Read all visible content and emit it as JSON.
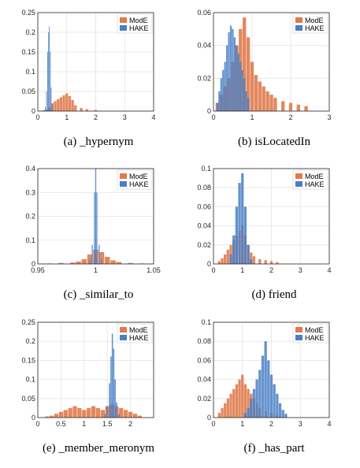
{
  "colors": {
    "ModE": "#e07b4c",
    "HAKE": "#4a7fc6"
  },
  "legend_placement": "top-right",
  "chart_data": [
    {
      "type": "bar",
      "caption": "(a) _hypernym",
      "xlim": [
        0,
        4
      ],
      "ylim": [
        0,
        0.25
      ],
      "xticks": [
        "0",
        "1",
        "2",
        "3",
        "4"
      ],
      "yticks": [
        "0",
        "0.05",
        "0.1",
        "0.15",
        "0.2",
        "0.25"
      ],
      "grid": true,
      "legend": [
        "ModE",
        "HAKE"
      ],
      "series": [
        {
          "name": "ModE",
          "x": [
            0.2,
            0.3,
            0.4,
            0.5,
            0.6,
            0.7,
            0.8,
            0.9,
            1.0,
            1.1,
            1.2,
            1.3,
            1.5,
            1.7,
            2.0
          ],
          "y": [
            0.002,
            0.004,
            0.01,
            0.02,
            0.025,
            0.03,
            0.035,
            0.04,
            0.045,
            0.038,
            0.028,
            0.015,
            0.008,
            0.005,
            0.003
          ]
        },
        {
          "name": "HAKE",
          "x": [
            0.26,
            0.3,
            0.34,
            0.37,
            0.4,
            0.43,
            0.46,
            0.5
          ],
          "y": [
            0.01,
            0.05,
            0.15,
            0.2,
            0.215,
            0.15,
            0.06,
            0.015
          ]
        }
      ]
    },
    {
      "type": "bar",
      "caption": "(b) isLocatedIn",
      "xlim": [
        0,
        3
      ],
      "ylim": [
        0,
        0.06
      ],
      "xticks": [
        "0",
        "1",
        "2",
        "3"
      ],
      "yticks": [
        "0",
        "0.02",
        "0.04",
        "0.06"
      ],
      "grid": true,
      "legend": [
        "ModE",
        "HAKE"
      ],
      "series": [
        {
          "name": "ModE",
          "x": [
            0.1,
            0.2,
            0.3,
            0.4,
            0.5,
            0.6,
            0.7,
            0.8,
            0.9,
            1.0,
            1.1,
            1.2,
            1.3,
            1.4,
            1.5,
            1.6,
            1.8,
            2.0,
            2.2,
            2.4
          ],
          "y": [
            0.005,
            0.01,
            0.015,
            0.02,
            0.03,
            0.04,
            0.05,
            0.057,
            0.045,
            0.03,
            0.022,
            0.018,
            0.015,
            0.012,
            0.01,
            0.008,
            0.006,
            0.005,
            0.004,
            0.003
          ]
        },
        {
          "name": "HAKE",
          "x": [
            0.1,
            0.15,
            0.2,
            0.25,
            0.3,
            0.35,
            0.4,
            0.45,
            0.5,
            0.55,
            0.6,
            0.65,
            0.7,
            0.75,
            0.8,
            0.85,
            0.9
          ],
          "y": [
            0.005,
            0.012,
            0.02,
            0.025,
            0.03,
            0.04,
            0.048,
            0.052,
            0.05,
            0.045,
            0.04,
            0.035,
            0.03,
            0.025,
            0.02,
            0.012,
            0.008
          ]
        }
      ]
    },
    {
      "type": "bar",
      "caption": "(c) _similar_to",
      "xlim": [
        0.95,
        1.05
      ],
      "ylim": [
        0,
        0.4
      ],
      "xticks": [
        "0.95",
        "1",
        "1.05"
      ],
      "yticks": [
        "0",
        "0.1",
        "0.2",
        "0.3",
        "0.4"
      ],
      "grid": true,
      "legend": [
        "ModE",
        "HAKE"
      ],
      "series": [
        {
          "name": "ModE",
          "x": [
            0.96,
            0.97,
            0.98,
            0.985,
            0.99,
            0.995,
            1.0,
            1.005,
            1.01,
            1.015,
            1.02,
            1.03,
            1.04
          ],
          "y": [
            0.002,
            0.004,
            0.006,
            0.01,
            0.02,
            0.04,
            0.06,
            0.05,
            0.03,
            0.015,
            0.008,
            0.004,
            0.002
          ]
        },
        {
          "name": "HAKE",
          "x": [
            0.995,
            0.997,
            0.999,
            1.0,
            1.001,
            1.003,
            1.005
          ],
          "y": [
            0.02,
            0.08,
            0.3,
            0.4,
            0.3,
            0.08,
            0.02
          ]
        }
      ]
    },
    {
      "type": "bar",
      "caption": "(d) friend",
      "xlim": [
        0,
        4
      ],
      "ylim": [
        0,
        0.1
      ],
      "xticks": [
        "0",
        "1",
        "2",
        "3",
        "4"
      ],
      "yticks": [
        "0",
        "0.02",
        "0.04",
        "0.06",
        "0.08",
        "0.1"
      ],
      "grid": true,
      "legend": [
        "ModE",
        "HAKE"
      ],
      "series": [
        {
          "name": "ModE",
          "x": [
            0.2,
            0.3,
            0.4,
            0.5,
            0.6,
            0.7,
            0.8,
            0.9,
            1.0,
            1.1,
            1.2,
            1.3,
            1.4,
            1.6,
            1.8,
            2.0,
            2.2
          ],
          "y": [
            0.003,
            0.006,
            0.01,
            0.015,
            0.02,
            0.025,
            0.03,
            0.035,
            0.04,
            0.03,
            0.02,
            0.012,
            0.008,
            0.005,
            0.004,
            0.003,
            0.002
          ]
        },
        {
          "name": "HAKE",
          "x": [
            0.6,
            0.7,
            0.8,
            0.9,
            1.0,
            1.1,
            1.2,
            1.3
          ],
          "y": [
            0.01,
            0.03,
            0.06,
            0.085,
            0.095,
            0.06,
            0.02,
            0.005
          ]
        }
      ]
    },
    {
      "type": "bar",
      "caption": "(e) _member_meronym",
      "xlim": [
        0,
        2.5
      ],
      "ylim": [
        0,
        0.25
      ],
      "xticks": [
        "0",
        "0.5",
        "1",
        "1.5",
        "2"
      ],
      "yticks": [
        "0",
        "0.05",
        "0.1",
        "0.15",
        "0.2",
        "0.25"
      ],
      "grid": true,
      "legend": [
        "ModE",
        "HAKE"
      ],
      "series": [
        {
          "name": "ModE",
          "x": [
            0.2,
            0.3,
            0.4,
            0.5,
            0.6,
            0.7,
            0.8,
            0.9,
            1.0,
            1.1,
            1.2,
            1.3,
            1.4,
            1.5,
            1.6,
            1.7,
            1.8,
            1.9,
            2.0,
            2.1,
            2.2
          ],
          "y": [
            0.003,
            0.005,
            0.01,
            0.015,
            0.02,
            0.025,
            0.03,
            0.025,
            0.02,
            0.025,
            0.03,
            0.025,
            0.02,
            0.03,
            0.035,
            0.03,
            0.025,
            0.02,
            0.015,
            0.01,
            0.005
          ]
        },
        {
          "name": "HAKE",
          "x": [
            1.45,
            1.5,
            1.55,
            1.58,
            1.61,
            1.64,
            1.67,
            1.7,
            1.75
          ],
          "y": [
            0.01,
            0.03,
            0.09,
            0.16,
            0.22,
            0.18,
            0.1,
            0.04,
            0.01
          ]
        }
      ]
    },
    {
      "type": "bar",
      "caption": "(f) _has_part",
      "xlim": [
        0,
        4
      ],
      "ylim": [
        0,
        0.1
      ],
      "xticks": [
        "0",
        "1",
        "2",
        "3",
        "4"
      ],
      "yticks": [
        "0",
        "0.02",
        "0.04",
        "0.06",
        "0.08",
        "0.1"
      ],
      "grid": true,
      "legend": [
        "ModE",
        "HAKE"
      ],
      "series": [
        {
          "name": "ModE",
          "x": [
            0.2,
            0.3,
            0.4,
            0.5,
            0.6,
            0.7,
            0.8,
            0.9,
            1.0,
            1.1,
            1.2,
            1.3,
            1.4,
            1.5,
            1.6,
            1.8,
            2.0,
            2.2
          ],
          "y": [
            0.005,
            0.01,
            0.015,
            0.02,
            0.025,
            0.03,
            0.035,
            0.04,
            0.045,
            0.035,
            0.03,
            0.025,
            0.02,
            0.015,
            0.01,
            0.007,
            0.005,
            0.003
          ]
        },
        {
          "name": "HAKE",
          "x": [
            1.1,
            1.2,
            1.3,
            1.4,
            1.5,
            1.6,
            1.7,
            1.8,
            1.9,
            2.0,
            2.1,
            2.2,
            2.3,
            2.4,
            2.5
          ],
          "y": [
            0.005,
            0.01,
            0.02,
            0.03,
            0.04,
            0.05,
            0.065,
            0.08,
            0.06,
            0.045,
            0.035,
            0.025,
            0.015,
            0.008,
            0.004
          ]
        }
      ]
    }
  ]
}
